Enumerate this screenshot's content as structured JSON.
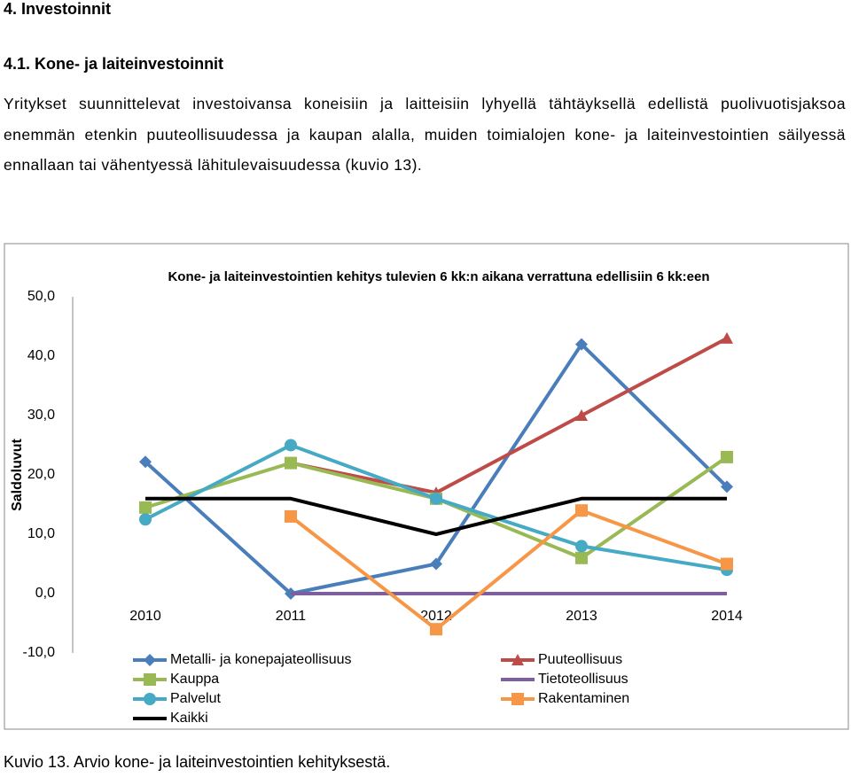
{
  "heading": "4. Investoinnit",
  "subheading": "4.1. Kone- ja laiteinvestoinnit",
  "paragraph": "Yritykset suunnittelevat investoivansa koneisiin ja laitteisiin lyhyellä tähtäyksellä edellistä puolivuotisjaksoa enemmän etenkin puuteollisuudessa ja kaupan alalla, muiden toimialojen kone- ja laiteinvestointien säilyessä ennallaan tai vähentyessä lähitulevaisuudessa (kuvio 13).",
  "caption": "Kuvio 13. Arvio kone- ja laiteinvestointien kehityksestä.",
  "chart_data": {
    "type": "line",
    "title": "Kone- ja laiteinvestointien kehitys tulevien 6 kk:n aikana verrattuna edellisiin 6 kk:een",
    "y_label": "Saldoluvut",
    "categories": [
      "2010",
      "2011",
      "2012",
      "2013",
      "2014"
    ],
    "ylim": [
      -10,
      50
    ],
    "yticks": [
      {
        "value": -10,
        "label": "-10,0"
      },
      {
        "value": 0,
        "label": "0,0"
      },
      {
        "value": 10,
        "label": "10,0"
      },
      {
        "value": 20,
        "label": "20,0"
      },
      {
        "value": 30,
        "label": "30,0"
      },
      {
        "value": 40,
        "label": "40,0"
      },
      {
        "value": 50,
        "label": "50,0"
      }
    ],
    "grid": false,
    "series": [
      {
        "name": "Metalli- ja konepajateollisuus",
        "color": "#4a7ebb",
        "marker": "diamond",
        "values": [
          22.2,
          0,
          5,
          42,
          18
        ]
      },
      {
        "name": "Puuteollisuus",
        "color": "#be4b48",
        "marker": "triangle",
        "values": [
          null,
          22,
          17,
          30,
          43
        ]
      },
      {
        "name": "Kauppa",
        "color": "#98b954",
        "marker": "square",
        "values": [
          14.5,
          22,
          16,
          6,
          23
        ]
      },
      {
        "name": "Tietoteollisuus",
        "color": "#7d5fa0",
        "marker": "none",
        "values": [
          null,
          0,
          0,
          0,
          0
        ]
      },
      {
        "name": "Palvelut",
        "color": "#46aac5",
        "marker": "circle",
        "values": [
          12.5,
          25,
          16,
          8,
          4
        ]
      },
      {
        "name": "Rakentaminen",
        "color": "#f79646",
        "marker": "square",
        "values": [
          null,
          13,
          -6,
          14,
          5
        ]
      },
      {
        "name": "Kaikki",
        "color": "#000000",
        "marker": "none",
        "values": [
          16,
          16,
          10,
          16,
          16
        ]
      }
    ]
  }
}
